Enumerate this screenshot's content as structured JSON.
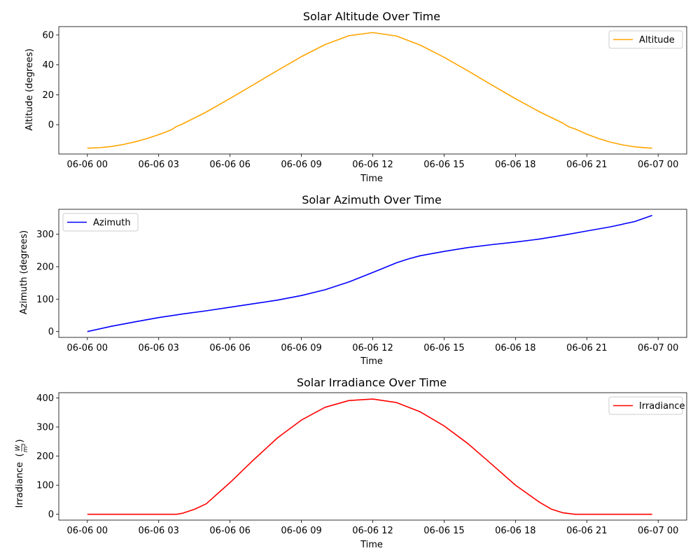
{
  "colors": {
    "altitude": "#ffa500",
    "azimuth": "#0000ff",
    "irradiance": "#ff0000"
  },
  "chart_data": [
    {
      "type": "line",
      "title": "Solar Altitude Over Time",
      "xlabel": "Time",
      "ylabel": "Altitude (degrees)",
      "x_ticks": [
        "06-06 00",
        "06-06 03",
        "06-06 06",
        "06-06 09",
        "06-06 12",
        "06-06 15",
        "06-06 18",
        "06-06 21",
        "06-07 00"
      ],
      "xlim_hours": [
        -1.2,
        25.2
      ],
      "y_ticks": [
        0,
        20,
        40,
        60
      ],
      "ylim": [
        -19.6,
        65.6
      ],
      "grid": false,
      "legend_position": "top-right",
      "series": [
        {
          "name": "Altitude",
          "color": "#ffa500",
          "x_hours": [
            0,
            0.5,
            1,
            1.5,
            2,
            2.5,
            3,
            3.5,
            3.75,
            4,
            5,
            6,
            7,
            8,
            9,
            10,
            11,
            12,
            13,
            14,
            15,
            16,
            17,
            18,
            19,
            20,
            20.25,
            20.5,
            21,
            21.5,
            22,
            22.5,
            23,
            23.5,
            23.75
          ],
          "values": [
            -15.7,
            -15.4,
            -14.6,
            -13.3,
            -11.5,
            -9.3,
            -6.7,
            -3.7,
            -1.2,
            0.5,
            8.5,
            17.5,
            26.9,
            36.3,
            45.5,
            53.6,
            59.5,
            61.6,
            59.3,
            53.2,
            45.1,
            36,
            26.6,
            17.4,
            8.7,
            1.0,
            -1.5,
            -2.8,
            -6.3,
            -9.3,
            -11.7,
            -13.5,
            -14.8,
            -15.5,
            -15.7
          ]
        }
      ]
    },
    {
      "type": "line",
      "title": "Solar Azimuth Over Time",
      "xlabel": "Time",
      "ylabel": "Azimuth (degrees)",
      "x_ticks": [
        "06-06 00",
        "06-06 03",
        "06-06 06",
        "06-06 09",
        "06-06 12",
        "06-06 15",
        "06-06 18",
        "06-06 21",
        "06-07 00"
      ],
      "xlim_hours": [
        -1.2,
        25.2
      ],
      "y_ticks": [
        0,
        100,
        200,
        300
      ],
      "ylim": [
        -18,
        377
      ],
      "grid": false,
      "legend_position": "top-left",
      "series": [
        {
          "name": "Azimuth",
          "color": "#0000ff",
          "x_hours": [
            0,
            1,
            2,
            3,
            4,
            5,
            6,
            7,
            8,
            9,
            10,
            11,
            12,
            12.5,
            13,
            13.5,
            14,
            15,
            16,
            17,
            18,
            19,
            20,
            21,
            22,
            23,
            23.75
          ],
          "values": [
            0,
            16,
            30,
            43,
            54,
            64,
            75,
            86,
            97,
            111,
            129,
            153,
            182,
            197,
            212,
            224,
            234,
            247,
            259,
            268,
            276,
            285,
            297,
            310,
            323,
            339,
            358
          ]
        }
      ]
    },
    {
      "type": "line",
      "title": "Solar Irradiance Over Time",
      "xlabel": "Time",
      "ylabel": "Irradiance",
      "ylabel_unit": "W / m²",
      "x_ticks": [
        "06-06 00",
        "06-06 03",
        "06-06 06",
        "06-06 09",
        "06-06 12",
        "06-06 15",
        "06-06 18",
        "06-06 21",
        "06-07 00"
      ],
      "xlim_hours": [
        -1.2,
        25.2
      ],
      "y_ticks": [
        0,
        100,
        200,
        300,
        400
      ],
      "ylim": [
        -20,
        418
      ],
      "grid": false,
      "legend_position": "top-right",
      "series": [
        {
          "name": "Irradiance",
          "color": "#ff0000",
          "x_hours": [
            0,
            1,
            2,
            3,
            3.75,
            4,
            4.5,
            5,
            6,
            7,
            8,
            9,
            10,
            11,
            12,
            13,
            14,
            15,
            16,
            17,
            18,
            19,
            19.5,
            20,
            20.5,
            21,
            22,
            23,
            23.75
          ],
          "values": [
            0,
            0,
            0,
            0,
            0,
            3.5,
            17,
            36,
            109,
            188,
            263,
            324,
            368,
            391,
            396,
            384,
            352,
            304,
            243,
            172,
            100,
            42,
            18,
            5,
            0,
            0,
            0,
            0,
            0
          ]
        }
      ]
    }
  ]
}
